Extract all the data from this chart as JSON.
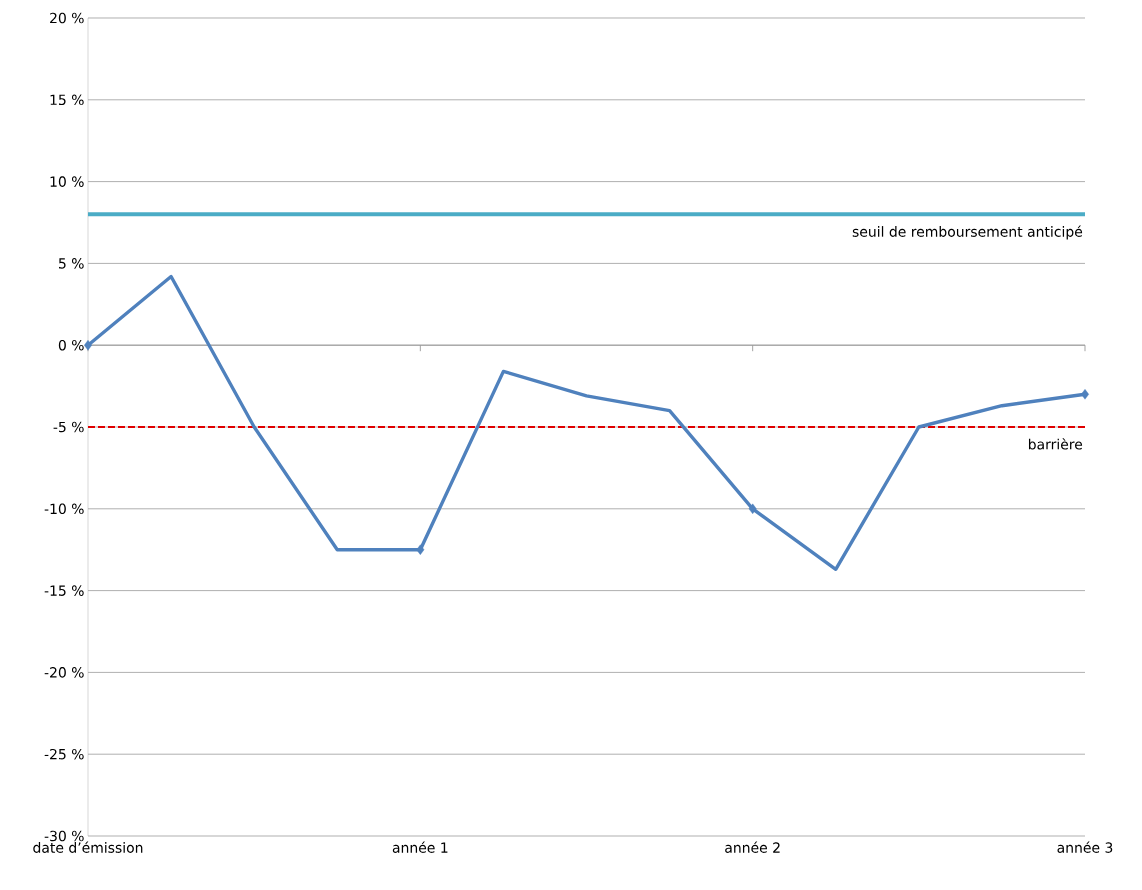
{
  "chart_data": {
    "type": "line",
    "categories": [
      "date d’émission",
      null,
      null,
      null,
      "année 1",
      null,
      null,
      null,
      "année 2",
      null,
      null,
      null,
      "année 3"
    ],
    "series": [
      {
        "color": "#4f81bd",
        "marker": "none",
        "values": [
          0,
          4.2,
          -5,
          -12.5,
          -12.5,
          -1.6,
          -3.1,
          -4,
          -10,
          -13.7,
          -5,
          -3.7,
          -3
        ]
      },
      {
        "type": "scatter",
        "color": "#4f81bd",
        "marker": "diamond",
        "values": [
          0,
          null,
          null,
          null,
          -12.5,
          null,
          null,
          null,
          -10,
          null,
          null,
          null,
          -3
        ]
      }
    ],
    "ylim": [
      -30,
      20
    ],
    "yticks": [
      {
        "value": -30,
        "label": "-30 %"
      },
      {
        "value": -25,
        "label": "-25 %"
      },
      {
        "value": -20,
        "label": "-20 %"
      },
      {
        "value": -15,
        "label": "-15 %"
      },
      {
        "value": -10,
        "label": "-10 %"
      },
      {
        "value": -5,
        "label": "-5 %"
      },
      {
        "value": 0,
        "label": "0 %"
      },
      {
        "value": 5,
        "label": "5 %"
      },
      {
        "value": 10,
        "label": "10 %"
      },
      {
        "value": 15,
        "label": "15 %"
      },
      {
        "value": 20,
        "label": "20 %"
      }
    ],
    "grid": "y",
    "ref_lines": [
      {
        "axis": "y",
        "value": 8,
        "label": "seuil de remboursement anticipé",
        "color": "#4bacc6",
        "line_style": "solid"
      },
      {
        "axis": "y",
        "value": -5,
        "label": "barrière",
        "color": "#e00000",
        "line_style": "dashed"
      }
    ]
  }
}
